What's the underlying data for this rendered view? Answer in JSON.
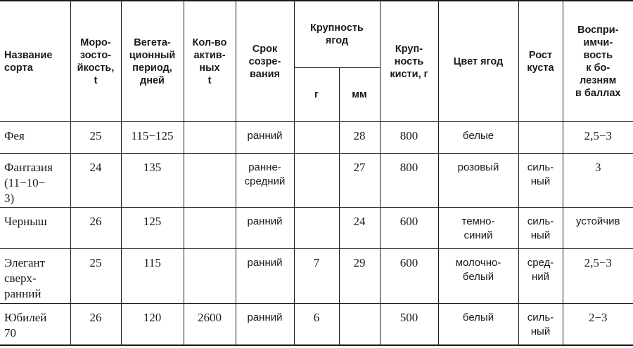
{
  "headers": {
    "name": "Название\nсорта",
    "frost": "Моро-\nзосто-\nйкость,\nt",
    "vegetation": "Вегета-\nционный\nпериод,\nдней",
    "active": "Кол-во\nактив-\nных\nt",
    "ripening": "Срок\nсозре-\nвания",
    "berry_size": "Крупность\nягод",
    "berry_size_g": "г",
    "berry_size_mm": "мм",
    "cluster": "Круп-\nность\nкисти, г",
    "color": "Цвет ягод",
    "growth": "Рост\nкуста",
    "disease": "Воспри-\nимчи-\nвость\nк бо-\nлезням\nв баллах"
  },
  "rows": [
    {
      "name": "Фея",
      "frost": "25",
      "vegetation": "115−125",
      "active": "",
      "ripening": "ранний",
      "g": "",
      "mm": "28",
      "cluster": "800",
      "color": "белые",
      "growth": "",
      "disease": "2,5−3"
    },
    {
      "name": "Фантазия\n(11−10−\n3)",
      "frost": "24",
      "vegetation": "135",
      "active": "",
      "ripening": "ранне-\nсредний",
      "g": "",
      "mm": "27",
      "cluster": "800",
      "color": "розовый",
      "growth": "силь-\nный",
      "disease": "3"
    },
    {
      "name": "Черныш",
      "frost": "26",
      "vegetation": "125",
      "active": "",
      "ripening": "ранний",
      "g": "",
      "mm": "24",
      "cluster": "600",
      "color": "темно-\nсиний",
      "growth": "силь-\nный",
      "disease": "устойчив"
    },
    {
      "name": "Элегант\nсверх-\nранний",
      "frost": "25",
      "vegetation": "115",
      "active": "",
      "ripening": "ранний",
      "g": "7",
      "mm": "29",
      "cluster": "600",
      "color": "молочно-\nбелый",
      "growth": "сред-\nний",
      "disease": "2,5−3"
    },
    {
      "name": "Юбилей\n70",
      "frost": "26",
      "vegetation": "120",
      "active": "2600",
      "ripening": "ранний",
      "g": "6",
      "mm": "",
      "cluster": "500",
      "color": "белый",
      "growth": "силь-\nный",
      "disease": "2−3"
    }
  ]
}
